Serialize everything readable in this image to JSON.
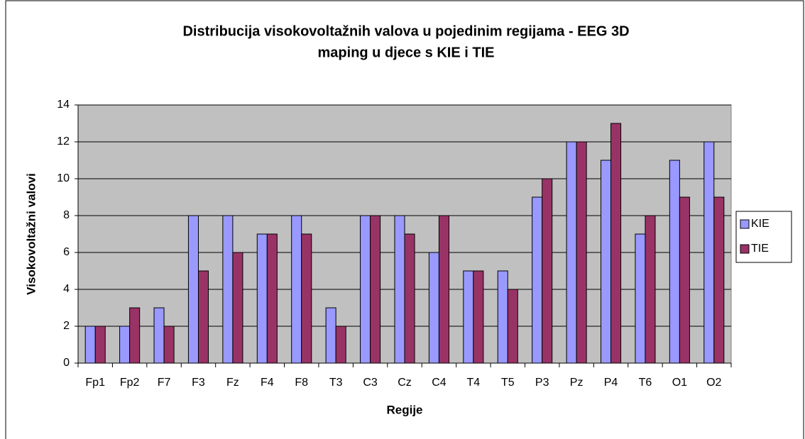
{
  "chart_data": {
    "type": "bar",
    "title": [
      "Distribucija visokovoltažnih valova u pojedinim regijama - EEG 3D",
      "maping u djece s KIE i TIE"
    ],
    "x_label": "Regije",
    "y_label": "Visokovoltažni valovi",
    "categories": [
      "Fp1",
      "Fp2",
      "F7",
      "F3",
      "Fz",
      "F4",
      "F8",
      "T3",
      "C3",
      "Cz",
      "C4",
      "T4",
      "T5",
      "P3",
      "Pz",
      "P4",
      "T6",
      "O1",
      "O2"
    ],
    "series": [
      {
        "name": "KIE",
        "color": "#9999ff",
        "values": [
          2,
          2,
          3,
          8,
          8,
          7,
          8,
          3,
          8,
          8,
          6,
          5,
          5,
          9,
          12,
          11,
          7,
          11,
          12
        ]
      },
      {
        "name": "TIE",
        "color": "#993366",
        "values": [
          2,
          3,
          2,
          5,
          6,
          7,
          7,
          2,
          8,
          7,
          8,
          5,
          4,
          10,
          12,
          13,
          8,
          9,
          9
        ]
      }
    ],
    "ylim": [
      0,
      14
    ],
    "yticks": [
      0,
      2,
      4,
      6,
      8,
      10,
      12,
      14
    ],
    "grid": true,
    "legend": "right"
  }
}
